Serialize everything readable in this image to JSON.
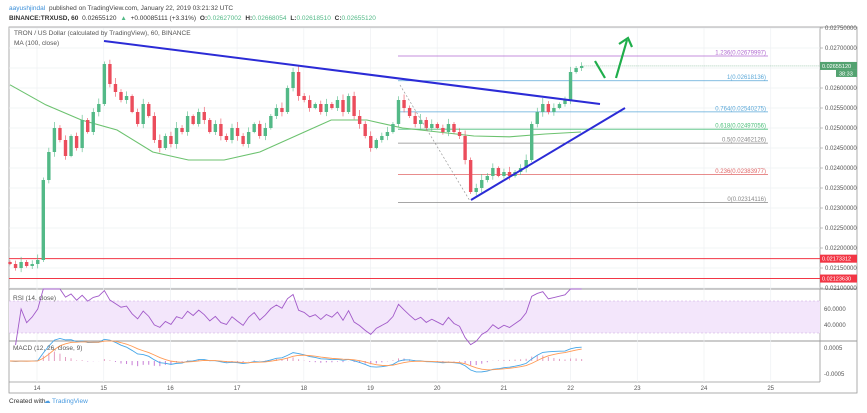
{
  "header": {
    "author": "aayushjindal",
    "published": "published on TradingView.com, January 22, 2019 03:21:32 UTC",
    "symbol": "BINANCE:TRXUSD, 60",
    "last": "0.02655120",
    "change": "+0.00085111 (+3.31%)",
    "o_label": "O:",
    "o": "0.02627002",
    "h_label": "H:",
    "h": "0.02668054",
    "l_label": "L:",
    "l": "0.02618510",
    "c_label": "C:",
    "c": "0.02655120"
  },
  "legend": {
    "title": "TRON / US Dollar (calculated by TradingView), 60, BINANCE",
    "ma": "MA (100, close)",
    "rsi": "RSI (14, close)",
    "macd": "MACD (12, 26, close, 9)"
  },
  "footer": {
    "created_with": "Created with",
    "brand": "TradingView"
  },
  "colors": {
    "up": "#53b987",
    "down": "#eb4d5c",
    "ma": "#6cc26f",
    "trendline": "#2b2bd6",
    "arrow": "#1fae4b",
    "rsi": "#a25bc9",
    "macd": "#45a6e8",
    "signal": "#ff9a55",
    "support": "#f23645",
    "current": "#53a270"
  },
  "current_price": {
    "value": "0.02655120",
    "countdown": "38:33"
  },
  "support_levels": [
    {
      "price": 0.02173312,
      "label": "0.02173312"
    },
    {
      "price": 0.0212363,
      "label": "0.02123630"
    }
  ],
  "fib_levels": [
    {
      "ratio": "1.236",
      "price": 0.02679997,
      "label": "1.236(0.02679997)",
      "color": "#b06ad0"
    },
    {
      "ratio": "1",
      "price": 0.02618136,
      "label": "1(0.02618136)",
      "color": "#5ba8d8"
    },
    {
      "ratio": "0.764",
      "price": 0.02540275,
      "label": "0.764(0.02540275)",
      "color": "#5ba8d8"
    },
    {
      "ratio": "0.618",
      "price": 0.02497056,
      "label": "0.618(0.02497056)",
      "color": "#4cbf7a"
    },
    {
      "ratio": "0.5",
      "price": 0.02462126,
      "label": "0.5(0.02462126)",
      "color": "#888888"
    },
    {
      "ratio": "0.236",
      "price": 0.02383977,
      "label": "0.236(0.02383977)",
      "color": "#e06666"
    },
    {
      "ratio": "0",
      "price": 0.02314116,
      "label": "0(0.02314116)",
      "color": "#888888"
    }
  ],
  "price_axis": [
    "0.02750000",
    "0.02700000",
    "0.02600000",
    "0.02550000",
    "0.02500000",
    "0.02450000",
    "0.02400000",
    "0.02350000",
    "0.02300000",
    "0.02250000",
    "0.02200000",
    "0.02150000",
    "0.02100000"
  ],
  "rsi_axis": [
    "60.0000",
    "40.0000"
  ],
  "macd_axis": [
    "0.0005",
    "-0.0005"
  ],
  "chart_data": {
    "type": "candlestick",
    "interval_note": "60",
    "x_ticks": [
      "14",
      "15",
      "16",
      "17",
      "18",
      "19",
      "20",
      "21",
      "22",
      "23",
      "24",
      "25"
    ],
    "ylim": [
      0.021,
      0.0275
    ],
    "closes": [
      0.0216,
      0.0215,
      0.02165,
      0.02155,
      0.0216,
      0.0217,
      0.0237,
      0.0244,
      0.025,
      0.0247,
      0.0243,
      0.0248,
      0.0245,
      0.0252,
      0.0249,
      0.0254,
      0.0256,
      0.0266,
      0.0261,
      0.0259,
      0.0257,
      0.0258,
      0.0254,
      0.0251,
      0.0256,
      0.0253,
      0.0247,
      0.0245,
      0.0248,
      0.0246,
      0.025,
      0.0249,
      0.0253,
      0.0251,
      0.0254,
      0.0252,
      0.0249,
      0.0251,
      0.0248,
      0.0247,
      0.025,
      0.0248,
      0.0246,
      0.0249,
      0.0251,
      0.0248,
      0.025,
      0.0253,
      0.0255,
      0.0254,
      0.026,
      0.0264,
      0.0258,
      0.0257,
      0.0255,
      0.0256,
      0.0254,
      0.0256,
      0.0255,
      0.0257,
      0.0254,
      0.0258,
      0.0253,
      0.0251,
      0.0248,
      0.0245,
      0.0247,
      0.0248,
      0.0249,
      0.0251,
      0.0257,
      0.0255,
      0.0253,
      0.0251,
      0.0252,
      0.025,
      0.0251,
      0.025,
      0.0249,
      0.0251,
      0.0249,
      0.0248,
      0.0242,
      0.0234,
      0.0235,
      0.0237,
      0.0238,
      0.024,
      0.0238,
      0.0239,
      0.0238,
      0.0239,
      0.024,
      0.0242,
      0.0251,
      0.0254,
      0.0256,
      0.0254,
      0.0255,
      0.0256,
      0.0257,
      0.0264,
      0.0265,
      0.02655
    ],
    "ma_100": [
      0.02608,
      0.02558,
      0.0252,
      0.02495,
      0.0244,
      0.0242,
      0.0242,
      0.0244,
      0.0248,
      0.0252,
      0.0252,
      0.025,
      0.0249,
      0.0248,
      0.02478,
      0.02485,
      0.0249
    ]
  }
}
